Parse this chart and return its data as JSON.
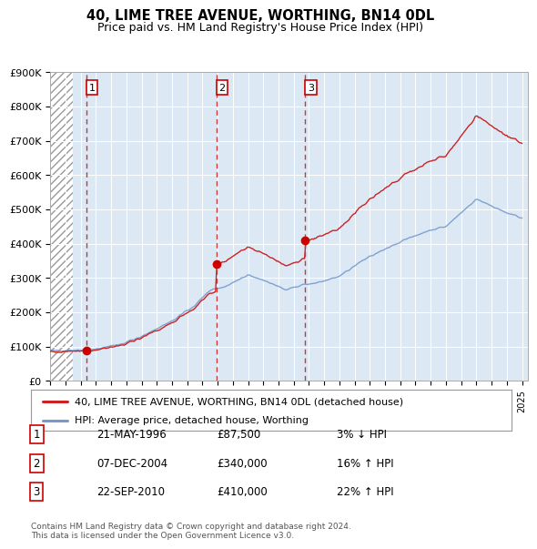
{
  "title": "40, LIME TREE AVENUE, WORTHING, BN14 0DL",
  "subtitle": "Price paid vs. HM Land Registry's House Price Index (HPI)",
  "sale_dates": [
    1996.38,
    2004.92,
    2010.75
  ],
  "sale_prices": [
    87500,
    340000,
    410000
  ],
  "sale_labels": [
    "1",
    "2",
    "3"
  ],
  "vline_color": "#cc3333",
  "sale_dot_color": "#cc0000",
  "hpi_line_color": "#7799cc",
  "price_line_color": "#cc2222",
  "legend_line1": "40, LIME TREE AVENUE, WORTHING, BN14 0DL (detached house)",
  "legend_line2": "HPI: Average price, detached house, Worthing",
  "table_rows": [
    [
      "1",
      "21-MAY-1996",
      "£87,500",
      "3% ↓ HPI"
    ],
    [
      "2",
      "07-DEC-2004",
      "£340,000",
      "16% ↑ HPI"
    ],
    [
      "3",
      "22-SEP-2010",
      "£410,000",
      "22% ↑ HPI"
    ]
  ],
  "footnote": "Contains HM Land Registry data © Crown copyright and database right 2024.\nThis data is licensed under the Open Government Licence v3.0.",
  "plot_bg_color": "#dce9f5",
  "hatch_end": 1995.5,
  "xlim_start": 1994.0,
  "xlim_end": 2025.4,
  "ylim": [
    0,
    900000
  ],
  "yticks": [
    0,
    100000,
    200000,
    300000,
    400000,
    500000,
    600000,
    700000,
    800000,
    900000
  ],
  "ytick_labels": [
    "£0",
    "£100K",
    "£200K",
    "£300K",
    "£400K",
    "£500K",
    "£600K",
    "£700K",
    "£800K",
    "£900K"
  ]
}
